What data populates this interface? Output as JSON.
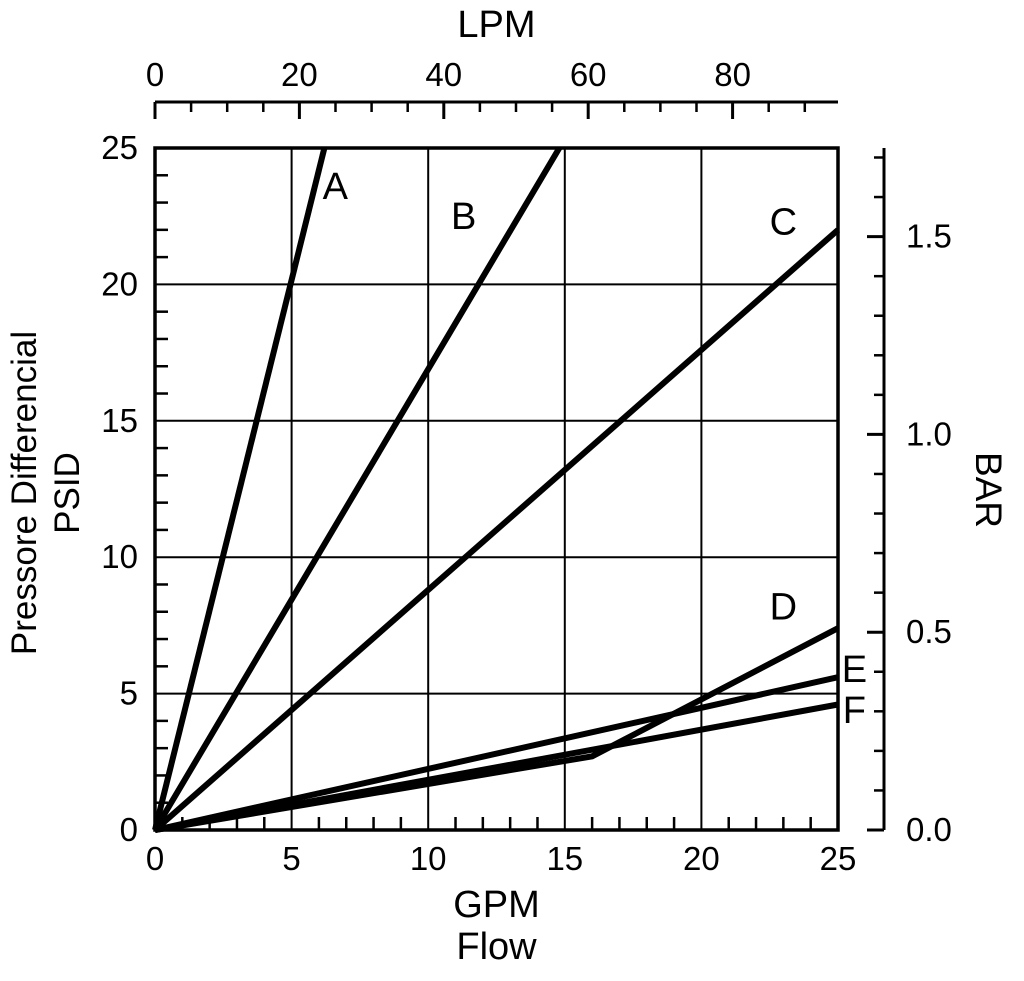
{
  "page": {
    "background": "#ffffff",
    "ink": "#000000"
  },
  "chart_data": {
    "type": "line",
    "title": "",
    "x_axis": {
      "label": "GPM",
      "sublabel": "Flow",
      "min": 0,
      "max": 25,
      "tick_values": [
        0,
        5,
        10,
        15,
        20,
        25
      ],
      "tick_labels": [
        "0",
        "5",
        "10",
        "15",
        "20",
        "25"
      ],
      "minor_step": 1,
      "grid": true
    },
    "x_top_axis": {
      "label": "LPM",
      "min": 0,
      "max": 94.6,
      "tick_values": [
        0,
        20,
        40,
        60,
        80
      ],
      "tick_labels": [
        "0",
        "20",
        "40",
        "60",
        "80"
      ],
      "minor_step": 5
    },
    "y_axis": {
      "label": "Pressore Differencial",
      "sublabel": "PSID",
      "min": 0,
      "max": 25,
      "tick_values": [
        0,
        5,
        10,
        15,
        20,
        25
      ],
      "tick_labels": [
        "0",
        "5",
        "10",
        "15",
        "20",
        "25"
      ],
      "minor_step": 1,
      "grid": true
    },
    "y_right_axis": {
      "label": "BAR",
      "min": 0,
      "max": 1.724,
      "tick_values": [
        0,
        0.5,
        1.0,
        1.5
      ],
      "tick_labels": [
        "0.0",
        "0.5",
        "1.0",
        "1.5"
      ],
      "minor_step": 0.1
    },
    "series": [
      {
        "name": "A",
        "points": [
          [
            0,
            0
          ],
          [
            6.2,
            25
          ]
        ],
        "label_at": [
          6.6,
          23.6
        ]
      },
      {
        "name": "B",
        "points": [
          [
            0,
            0
          ],
          [
            14.8,
            25
          ]
        ],
        "label_at": [
          11.3,
          22.5
        ]
      },
      {
        "name": "C",
        "points": [
          [
            0,
            0
          ],
          [
            25,
            22
          ]
        ],
        "label_at": [
          23.0,
          22.3
        ]
      },
      {
        "name": "D",
        "points": [
          [
            0,
            0
          ],
          [
            16,
            2.7
          ],
          [
            25,
            7.4
          ]
        ],
        "label_at": [
          23.0,
          8.2
        ]
      },
      {
        "name": "E",
        "points": [
          [
            0,
            0
          ],
          [
            25,
            5.6
          ]
        ],
        "label_at": [
          25.6,
          5.9
        ]
      },
      {
        "name": "F",
        "points": [
          [
            0,
            0
          ],
          [
            25,
            4.6
          ]
        ],
        "label_at": [
          25.6,
          4.4
        ]
      }
    ],
    "legend": "inline-labels",
    "line_color": "#000000",
    "grid_on": true
  }
}
